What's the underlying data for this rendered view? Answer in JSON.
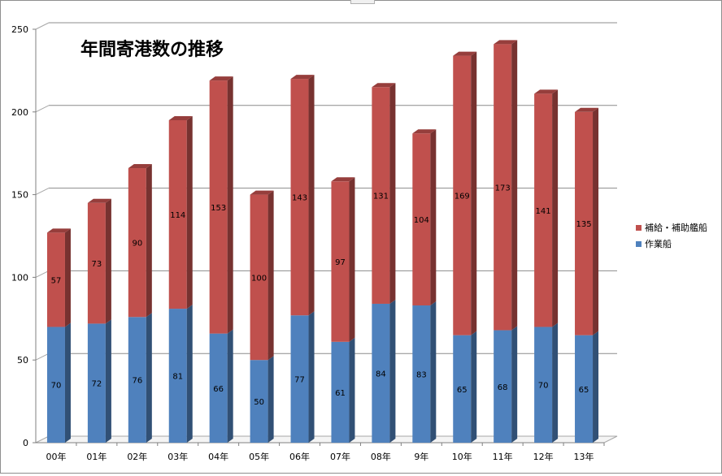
{
  "chart_data": {
    "type": "bar",
    "stacked": true,
    "title": "年間寄港数の推移",
    "xlabel": "",
    "ylabel": "",
    "categories": [
      "00年",
      "01年",
      "02年",
      "03年",
      "04年",
      "05年",
      "06年",
      "07年",
      "08年",
      "9年",
      "10年",
      "11年",
      "12年",
      "13年"
    ],
    "series": [
      {
        "name": "作業船",
        "color": "#4f81bd",
        "values": [
          70,
          72,
          76,
          81,
          66,
          50,
          77,
          61,
          84,
          83,
          65,
          68,
          70,
          65
        ]
      },
      {
        "name": "補給・補助艦船",
        "color": "#c0504d",
        "values": [
          57,
          73,
          90,
          114,
          153,
          100,
          143,
          97,
          131,
          104,
          169,
          173,
          141,
          135
        ]
      }
    ],
    "ylim": [
      0,
      250
    ],
    "yticks": [
      0,
      50,
      100,
      150,
      200,
      250
    ],
    "grid": true,
    "legend": "right"
  }
}
